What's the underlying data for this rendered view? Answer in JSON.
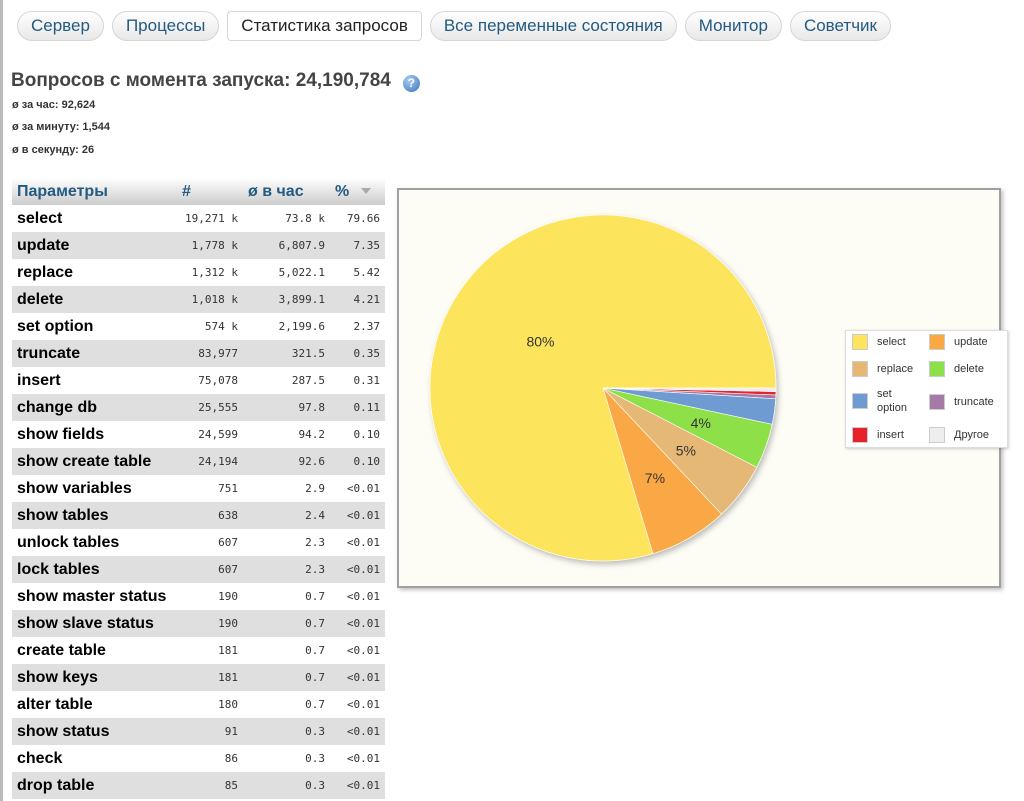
{
  "tabs": [
    {
      "label": "Сервер"
    },
    {
      "label": "Процессы"
    },
    {
      "label": "Статистика запросов",
      "active": true
    },
    {
      "label": "Все переменные состояния"
    },
    {
      "label": "Монитор"
    },
    {
      "label": "Советчик"
    }
  ],
  "summary": {
    "title": "Вопросов с момента запуска: 24,190,784",
    "per_hour": "ø за час: 92,624",
    "per_minute": "ø за минуту: 1,544",
    "per_second": "ø в секунду: 26"
  },
  "table": {
    "headers": [
      "Параметры",
      "#",
      "ø в час",
      "%"
    ],
    "rows": [
      {
        "name": "select",
        "count": "19,271 k",
        "per_hour": "73.8 k",
        "pct": "79.66"
      },
      {
        "name": "update",
        "count": "1,778 k",
        "per_hour": "6,807.9",
        "pct": "7.35"
      },
      {
        "name": "replace",
        "count": "1,312 k",
        "per_hour": "5,022.1",
        "pct": "5.42"
      },
      {
        "name": "delete",
        "count": "1,018 k",
        "per_hour": "3,899.1",
        "pct": "4.21"
      },
      {
        "name": "set option",
        "count": "574 k",
        "per_hour": "2,199.6",
        "pct": "2.37"
      },
      {
        "name": "truncate",
        "count": "83,977",
        "per_hour": "321.5",
        "pct": "0.35"
      },
      {
        "name": "insert",
        "count": "75,078",
        "per_hour": "287.5",
        "pct": "0.31"
      },
      {
        "name": "change db",
        "count": "25,555",
        "per_hour": "97.8",
        "pct": "0.11"
      },
      {
        "name": "show fields",
        "count": "24,599",
        "per_hour": "94.2",
        "pct": "0.10"
      },
      {
        "name": "show create table",
        "count": "24,194",
        "per_hour": "92.6",
        "pct": "0.10"
      },
      {
        "name": "show variables",
        "count": "751",
        "per_hour": "2.9",
        "pct": "<0.01"
      },
      {
        "name": "show tables",
        "count": "638",
        "per_hour": "2.4",
        "pct": "<0.01"
      },
      {
        "name": "unlock tables",
        "count": "607",
        "per_hour": "2.3",
        "pct": "<0.01"
      },
      {
        "name": "lock tables",
        "count": "607",
        "per_hour": "2.3",
        "pct": "<0.01"
      },
      {
        "name": "show master status",
        "count": "190",
        "per_hour": "0.7",
        "pct": "<0.01"
      },
      {
        "name": "show slave status",
        "count": "190",
        "per_hour": "0.7",
        "pct": "<0.01"
      },
      {
        "name": "create table",
        "count": "181",
        "per_hour": "0.7",
        "pct": "<0.01"
      },
      {
        "name": "show keys",
        "count": "181",
        "per_hour": "0.7",
        "pct": "<0.01"
      },
      {
        "name": "alter table",
        "count": "180",
        "per_hour": "0.7",
        "pct": "<0.01"
      },
      {
        "name": "show status",
        "count": "91",
        "per_hour": "0.3",
        "pct": "<0.01"
      },
      {
        "name": "check",
        "count": "86",
        "per_hour": "0.3",
        "pct": "<0.01"
      },
      {
        "name": "drop table",
        "count": "85",
        "per_hour": "0.3",
        "pct": "<0.01"
      }
    ]
  },
  "chart_data": {
    "type": "pie",
    "categories": [
      "select",
      "update",
      "replace",
      "delete",
      "set option",
      "truncate",
      "insert",
      "Другое"
    ],
    "values": [
      79.66,
      7.35,
      5.42,
      4.21,
      2.37,
      0.35,
      0.31,
      0.33
    ],
    "colors": [
      "#fce55c",
      "#faa844",
      "#e6b874",
      "#8ee04a",
      "#6e9bd2",
      "#a779a7",
      "#e8222a",
      "#eeeeee"
    ],
    "slice_labels": [
      "80%",
      "7%",
      "5%",
      "4%",
      "",
      "",
      "",
      ""
    ],
    "legend_placement": "right"
  }
}
